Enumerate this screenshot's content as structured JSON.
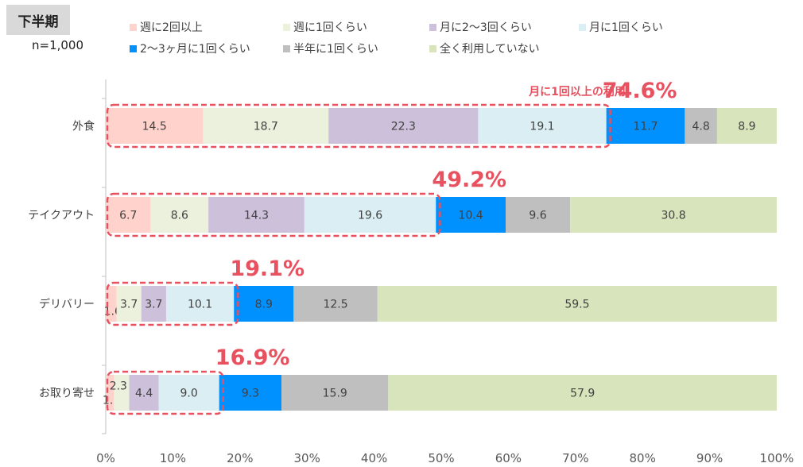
{
  "header": {
    "period": "下半期",
    "sample": "n=1,000"
  },
  "legend": [
    {
      "label": "週に2回以上",
      "color": "#ffd2cc"
    },
    {
      "label": "週に1回くらい",
      "color": "#ebf1dd"
    },
    {
      "label": "月に2～3回くらい",
      "color": "#ccc0da"
    },
    {
      "label": "月に1回くらい",
      "color": "#dbeef3"
    },
    {
      "label": "2～3ヶ月に1回くらい",
      "color": "#0091ff"
    },
    {
      "label": "半年に1回くらい",
      "color": "#bfbfbf"
    },
    {
      "label": "全く利用していない",
      "color": "#d8e4bc"
    }
  ],
  "highlight": {
    "title": "月に1回以上の利用",
    "color": "#e8515f"
  },
  "chart_data": {
    "type": "bar",
    "orientation": "horizontal",
    "stacked": "percent",
    "categories": [
      "外食",
      "テイクアウト",
      "デリバリー",
      "お取り寄せ"
    ],
    "series": [
      {
        "name": "週に2回以上",
        "values": [
          14.5,
          6.7,
          1.6,
          1.2
        ]
      },
      {
        "name": "週に1回くらい",
        "values": [
          18.7,
          8.6,
          3.7,
          2.3
        ]
      },
      {
        "name": "月に2～3回くらい",
        "values": [
          22.3,
          14.3,
          3.7,
          4.4
        ]
      },
      {
        "name": "月に1回くらい",
        "values": [
          19.1,
          19.6,
          10.1,
          9.0
        ]
      },
      {
        "name": "2～3ヶ月に1回くらい",
        "values": [
          11.7,
          10.4,
          8.9,
          9.3
        ]
      },
      {
        "name": "半年に1回くらい",
        "values": [
          4.8,
          9.6,
          12.5,
          15.9
        ]
      },
      {
        "name": "全く利用していない",
        "values": [
          8.9,
          30.8,
          59.5,
          57.9
        ]
      }
    ],
    "value_labels": [
      [
        "14.5",
        "18.7",
        "22.3",
        "19.1",
        "11.7",
        "4.8",
        "8.9"
      ],
      [
        "6.7",
        "8.6",
        "14.3",
        "19.6",
        "10.4",
        "9.6",
        "30.8"
      ],
      [
        "1.6",
        "3.7",
        "3.7",
        "10.1",
        "8.9",
        "12.5",
        "59.5"
      ],
      [
        "1.2",
        "2.3",
        "4.4",
        "9.0",
        "9.3",
        "15.9",
        "57.9"
      ]
    ],
    "monthly_or_more": [
      "74.6%",
      "49.2%",
      "19.1%",
      "16.9%"
    ],
    "xticks": [
      "0%",
      "10%",
      "20%",
      "30%",
      "40%",
      "50%",
      "60%",
      "70%",
      "80%",
      "90%",
      "100%"
    ],
    "xlim": [
      0,
      100
    ],
    "grid": false
  }
}
